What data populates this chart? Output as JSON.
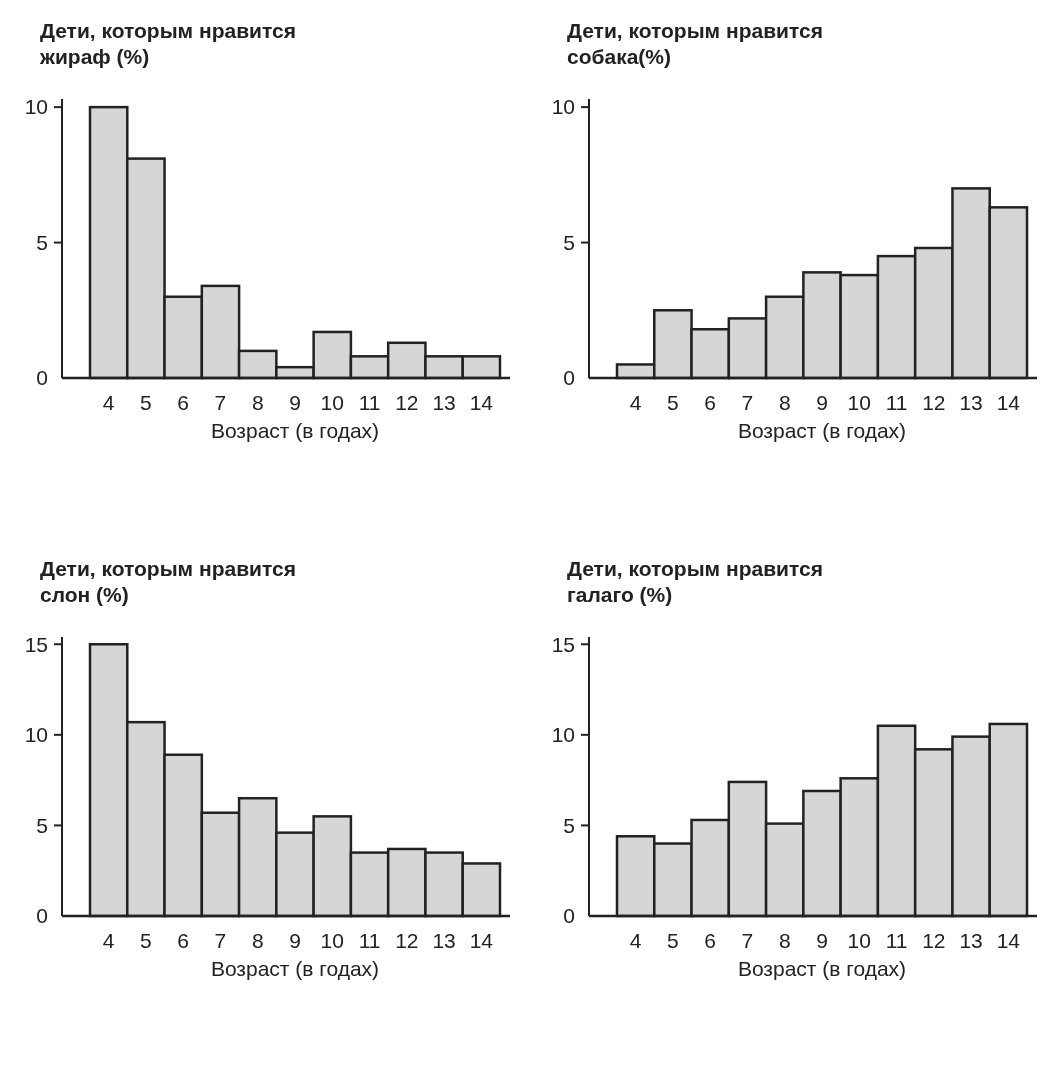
{
  "chart_data": [
    {
      "type": "bar",
      "title": "Дети, которым нравится жираф (%)",
      "xlabel": "Возраст (в годах)",
      "categories": [
        "4",
        "5",
        "6",
        "7",
        "8",
        "9",
        "10",
        "11",
        "12",
        "13",
        "14"
      ],
      "values": [
        10,
        8.1,
        3.0,
        3.4,
        1.0,
        0.4,
        1.7,
        0.8,
        1.3,
        0.8,
        0.8
      ],
      "color": "#d6d6d6",
      "ylim": [
        0,
        10.3
      ],
      "yticks": [
        0,
        5,
        10
      ]
    },
    {
      "type": "bar",
      "title": "Дети, которым нравится собака(%)",
      "xlabel": "Возраст (в годах)",
      "categories": [
        "4",
        "5",
        "6",
        "7",
        "8",
        "9",
        "10",
        "11",
        "12",
        "13",
        "14"
      ],
      "values": [
        0.5,
        2.5,
        1.8,
        2.2,
        3.0,
        3.9,
        3.8,
        4.5,
        4.8,
        7.0,
        6.3
      ],
      "color": "#d6d6d6",
      "ylim": [
        0,
        10.3
      ],
      "yticks": [
        0,
        5,
        10
      ]
    },
    {
      "type": "bar",
      "title": "Дети, которым нравится слон (%)",
      "xlabel": "Возраст (в годах)",
      "categories": [
        "4",
        "5",
        "6",
        "7",
        "8",
        "9",
        "10",
        "11",
        "12",
        "13",
        "14"
      ],
      "values": [
        15,
        10.7,
        8.9,
        5.7,
        6.5,
        4.6,
        5.5,
        3.5,
        3.7,
        3.5,
        2.9
      ],
      "color": "#d6d6d6",
      "ylim": [
        0,
        15.4
      ],
      "yticks": [
        0,
        5,
        10,
        15
      ]
    },
    {
      "type": "bar",
      "title": "Дети, которым нравится галаго (%)",
      "xlabel": "Возраст (в годах)",
      "categories": [
        "4",
        "5",
        "6",
        "7",
        "8",
        "9",
        "10",
        "11",
        "12",
        "13",
        "14"
      ],
      "values": [
        4.4,
        4.0,
        5.3,
        7.4,
        5.1,
        6.9,
        7.6,
        10.5,
        9.2,
        9.9,
        10.6
      ],
      "color": "#d6d6d6",
      "ylim": [
        0,
        15.4
      ],
      "yticks": [
        0,
        5,
        10,
        15
      ]
    }
  ]
}
